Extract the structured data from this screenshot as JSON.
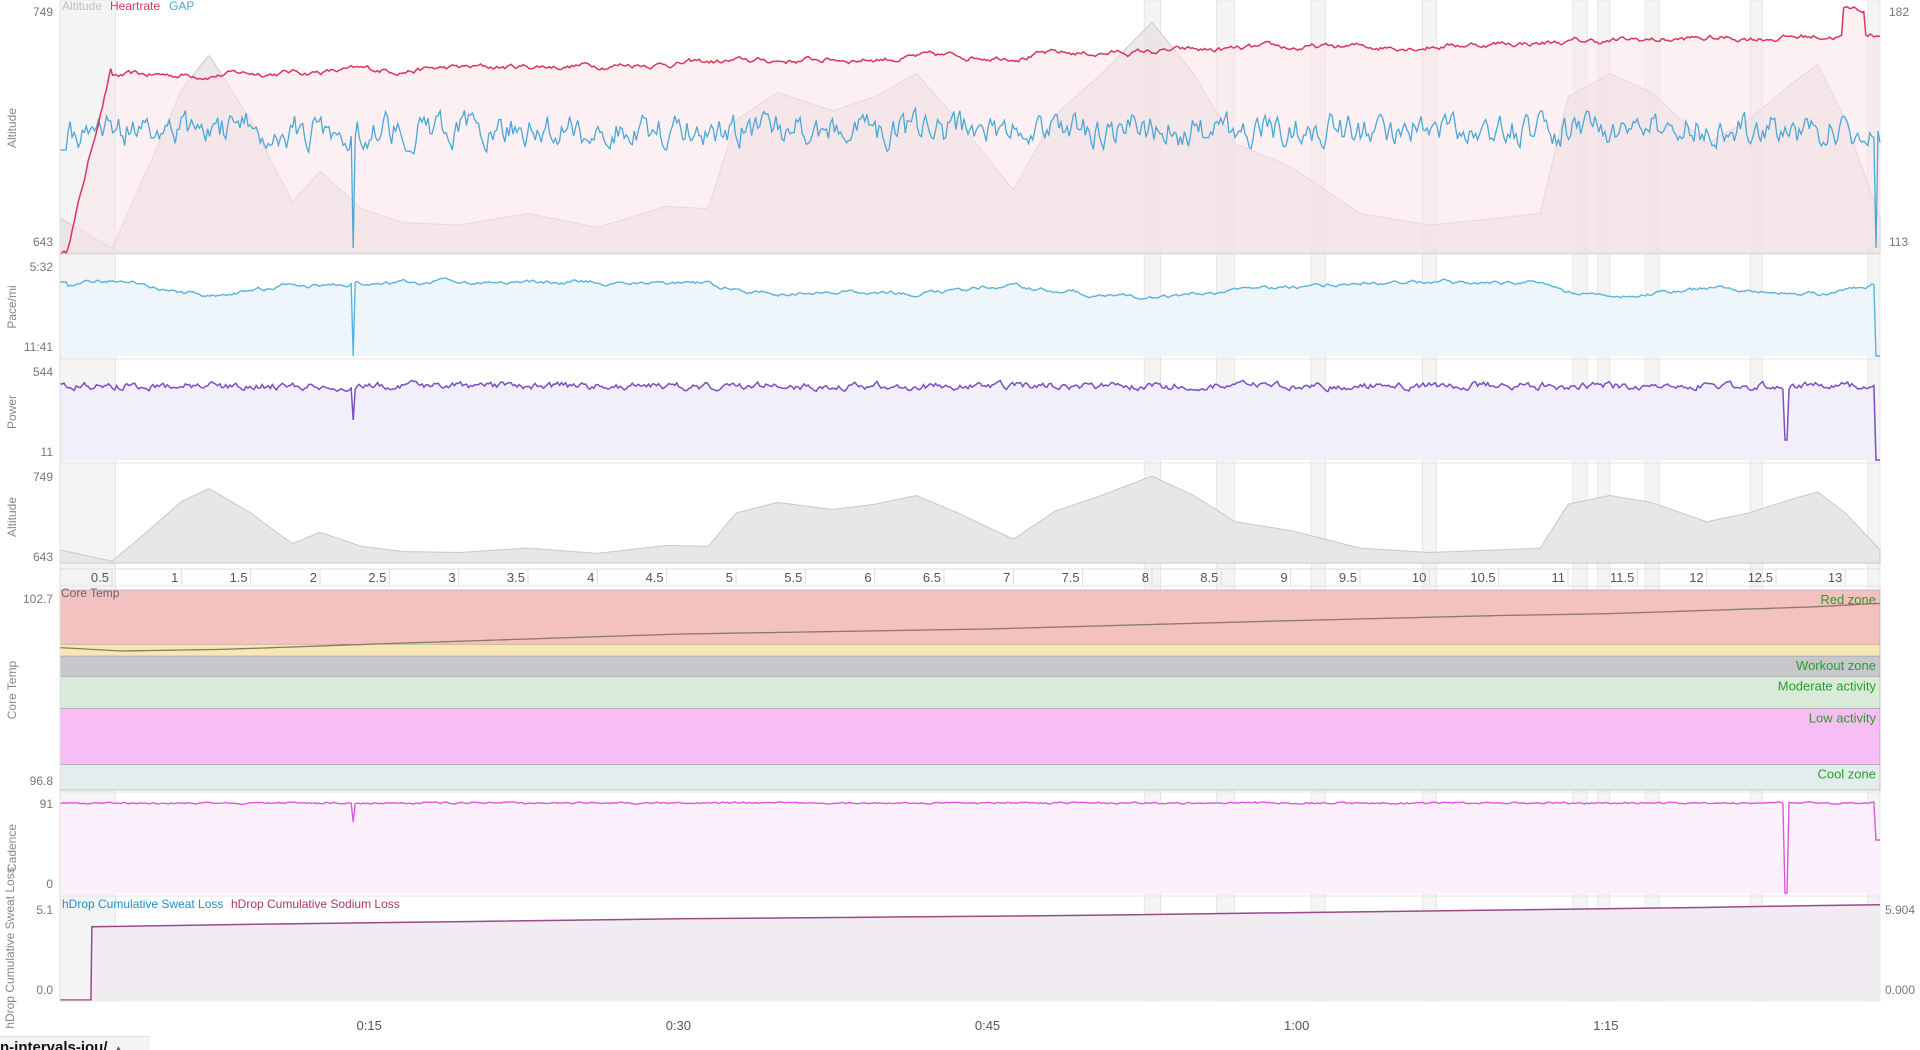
{
  "colors": {
    "heartrate": "#d9365b",
    "gap": "#4aa8d8",
    "pace": "#5ab3dd",
    "power": "#7a4fc4",
    "altitude_fill": "#e7e7e7",
    "altitude_line": "#c8c8c8",
    "cadence": "#e055e0",
    "sweat": "#1f8fc8",
    "sodium": "#b03565",
    "zone_red": "#f2c1c0",
    "zone_yellow": "#f8e7b5",
    "zone_workout": "#c7c7cc",
    "zone_moderate": "#d9ead8",
    "zone_low": "#f7bdf5",
    "zone_cool": "#e3ecee",
    "zone_label": "#2a9d2a",
    "interval_band": "#ececef"
  },
  "chart_data": [
    {
      "type": "line",
      "id": "hr-gap-altitude",
      "legend": [
        "Altitude",
        "Heartrate",
        "GAP"
      ],
      "ylabel": "Altitude",
      "ylim_left": [
        643,
        749
      ],
      "ylim_right": [
        113,
        182
      ],
      "left_tick_labels": [
        "749",
        "643"
      ],
      "right_tick_labels": [
        "182",
        "113"
      ]
    },
    {
      "type": "line",
      "id": "pace",
      "ylabel": "Pace/mi",
      "tick_labels": [
        "5:32",
        "11:41"
      ]
    },
    {
      "type": "line",
      "id": "power",
      "ylabel": "Power",
      "ylim": [
        11,
        544
      ],
      "tick_labels": [
        "544",
        "11"
      ]
    },
    {
      "type": "area",
      "id": "altitude",
      "ylabel": "Altitude",
      "ylim": [
        643,
        749
      ],
      "tick_labels": [
        "749",
        "643"
      ],
      "x_distance_ticks": [
        "0.5",
        "1",
        "1.5",
        "2",
        "2.5",
        "3",
        "3.5",
        "4",
        "4.5",
        "5",
        "5.5",
        "6",
        "6.5",
        "7",
        "7.5",
        "8",
        "8.5",
        "9",
        "9.5",
        "10",
        "10.5",
        "11",
        "11.5",
        "12",
        "12.5",
        "13"
      ],
      "x_distance_values": [
        0.5,
        1,
        1.5,
        2,
        2.5,
        3,
        3.5,
        4,
        4.5,
        5,
        5.5,
        6,
        6.5,
        7,
        7.5,
        8,
        8.5,
        9,
        9.5,
        10,
        10.5,
        11,
        11.5,
        12,
        12.5,
        13
      ],
      "xlim_distance": [
        0.125,
        13.25
      ],
      "x": [
        0.125,
        0.5,
        0.8,
        1.0,
        1.2,
        1.5,
        1.8,
        2.0,
        2.3,
        2.6,
        3.0,
        3.5,
        4.0,
        4.5,
        4.8,
        5.0,
        5.3,
        5.7,
        6.0,
        6.3,
        6.6,
        7.0,
        7.3,
        7.6,
        7.8,
        8.0,
        8.3,
        8.6,
        9.0,
        9.5,
        10.0,
        10.5,
        10.8,
        11.0,
        11.3,
        11.6,
        12.0,
        12.3,
        12.6,
        12.8,
        13.0,
        13.25
      ],
      "values": [
        658,
        645,
        685,
        713,
        728,
        700,
        665,
        678,
        662,
        656,
        655,
        660,
        654,
        663,
        662,
        700,
        712,
        704,
        710,
        720,
        700,
        670,
        702,
        718,
        730,
        742,
        720,
        690,
        680,
        660,
        655,
        658,
        660,
        710,
        720,
        712,
        690,
        700,
        715,
        724,
        700,
        658
      ]
    },
    {
      "type": "area",
      "id": "core-temp",
      "title": "Core Temp",
      "ylabel": "Core Temp",
      "ylim": [
        96.8,
        102.7
      ],
      "tick_labels": [
        "102.7",
        "96.8"
      ],
      "zones": [
        {
          "name": "Red zone",
          "from": 101.1,
          "to": 102.7,
          "color": "zone_red"
        },
        {
          "name": "",
          "from": 100.75,
          "to": 101.1,
          "color": "zone_yellow"
        },
        {
          "name": "Workout zone",
          "from": 100.15,
          "to": 100.75,
          "color": "zone_workout"
        },
        {
          "name": "Moderate activity",
          "from": 99.2,
          "to": 100.15,
          "color": "zone_moderate"
        },
        {
          "name": "Low activity",
          "from": 97.55,
          "to": 99.2,
          "color": "zone_low"
        },
        {
          "name": "Cool zone",
          "from": 96.8,
          "to": 97.55,
          "color": "zone_cool"
        }
      ],
      "x_minutes": [
        0,
        3,
        8,
        15,
        30,
        45,
        60,
        70,
        75,
        80,
        85,
        88
      ],
      "values": [
        101.0,
        100.9,
        100.95,
        101.1,
        101.4,
        101.55,
        101.8,
        101.95,
        102.0,
        102.1,
        102.2,
        102.3
      ]
    },
    {
      "type": "line",
      "id": "cadence",
      "ylabel": "Cadence",
      "ylim": [
        0,
        91
      ],
      "tick_labels": [
        "91",
        "0"
      ]
    },
    {
      "type": "line",
      "id": "sweat-sodium",
      "legend": [
        "hDrop Cumulative Sweat Loss",
        "hDrop Cumulative Sodium Loss"
      ],
      "ylabel": "hDrop Cumulative Sweat Loss",
      "ylim_left": [
        0.0,
        5.1
      ],
      "ylim_right": [
        0.0,
        5.904
      ],
      "left_tick_labels": [
        "5.1",
        "0.0"
      ],
      "right_tick_labels": [
        "5.904",
        "0.000"
      ],
      "x_time_ticks": [
        "0:15",
        "0:30",
        "0:45",
        "1:00",
        "1:15"
      ],
      "x_time_minutes": [
        15,
        30,
        45,
        60,
        75
      ],
      "xlim_minutes": [
        0,
        88.3
      ],
      "x_minutes": [
        0,
        1.5,
        1.55,
        10,
        20,
        30,
        40,
        50,
        60,
        70,
        80,
        85,
        88.3
      ],
      "values": [
        0.0,
        0.0,
        4.15,
        4.3,
        4.45,
        4.6,
        4.7,
        4.8,
        4.95,
        5.1,
        5.25,
        5.35,
        5.4
      ]
    }
  ],
  "interval_bands_minutes": [
    [
      0,
      2.7
    ],
    [
      52.6,
      53.4
    ],
    [
      56.1,
      57.0
    ],
    [
      60.7,
      61.4
    ],
    [
      66.1,
      66.8
    ],
    [
      73.4,
      74.1
    ],
    [
      74.6,
      75.2
    ],
    [
      76.9,
      77.6
    ],
    [
      82.0,
      82.6
    ],
    [
      87.7,
      88.3
    ]
  ],
  "tab": {
    "label": "n-intervals-jou/",
    "caret": "▲"
  }
}
